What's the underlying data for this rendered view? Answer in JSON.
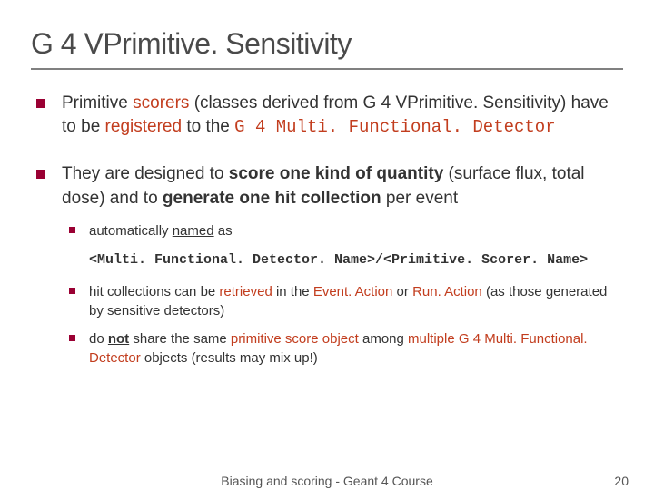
{
  "title_fontsize": 32,
  "body_fontsize": 19,
  "sub_fontsize": 15,
  "footer_fontsize": 14,
  "colors": {
    "background": "#ffffff",
    "text": "#333333",
    "title": "#4a4a4a",
    "accent_red": "#c23d1e",
    "bullet": "#9a0033",
    "rule": "#808080"
  },
  "title": "G 4 VPrimitive. Sensitivity",
  "bullets": [
    {
      "line1_a": "Primitive ",
      "line1_b": "scorers",
      "line1_c": " (classes derived from G 4 VPrimitive. Sensitivity) have to be ",
      "line1_d": "registered",
      "line1_e": " to the ",
      "line1_f": "G 4 Multi. Functional. Detector"
    },
    {
      "line2_a": "They are designed to ",
      "line2_b": "score one kind of quantity",
      "line2_c": " (surface flux, total dose) and to ",
      "line2_d": "generate one hit collection",
      "line2_e": " per event",
      "sub": [
        {
          "s1_a": "automatically ",
          "s1_b": "named",
          "s1_c": " as",
          "s1_code": "<Multi. Functional. Detector. Name>/<Primitive. Scorer. Name>"
        },
        {
          "s2_a": "hit collections can be ",
          "s2_b": "retrieved",
          "s2_c": " in the ",
          "s2_d": "Event. Action",
          "s2_e": " or ",
          "s2_f": "Run. Action",
          "s2_g": " (as those generated by sensitive detectors)"
        },
        {
          "s3_a": "do ",
          "s3_b": "not",
          "s3_c": " share the same ",
          "s3_d": "primitive score object",
          "s3_e": " among ",
          "s3_f": "multiple",
          "s3_g": " ",
          "s3_h": "G 4 Multi. Functional. Detector",
          "s3_i": " objects (results may mix up!)"
        }
      ]
    }
  ],
  "footer": {
    "center": "Biasing and scoring - Geant 4 Course",
    "page": "20"
  }
}
